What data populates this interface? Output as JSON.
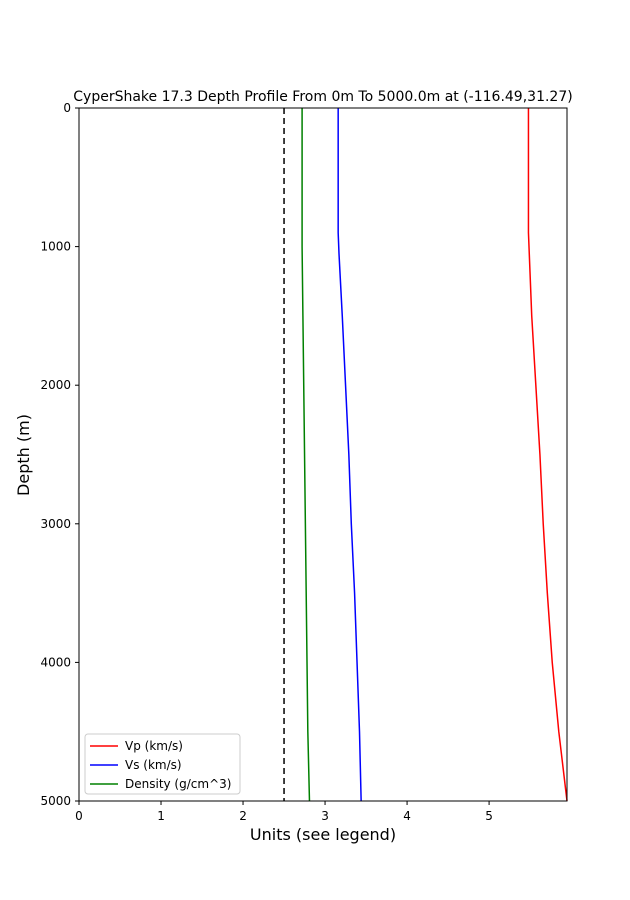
{
  "chart_data": {
    "type": "line",
    "title": "CyperShake 17.3 Depth Profile From 0m To 5000.0m at (-116.49,31.27)",
    "xlabel": "Units (see legend)",
    "ylabel": "Depth (m)",
    "xlim": [
      0,
      5.95
    ],
    "ylim": [
      5000,
      0
    ],
    "y_inverted": true,
    "grid": false,
    "legend_position": "lower-left",
    "x_ticks": [
      0,
      1,
      2,
      3,
      4,
      5
    ],
    "y_ticks": [
      0,
      1000,
      2000,
      3000,
      4000,
      5000
    ],
    "reference_line": {
      "x": 2.5,
      "style": "dashed",
      "color": "#000000"
    },
    "series": [
      {
        "name": "Vp (km/s)",
        "color": "#ff0000",
        "points": [
          [
            5.48,
            0
          ],
          [
            5.48,
            500
          ],
          [
            5.48,
            900
          ],
          [
            5.49,
            1050
          ],
          [
            5.52,
            1500
          ],
          [
            5.57,
            2000
          ],
          [
            5.62,
            2500
          ],
          [
            5.66,
            3000
          ],
          [
            5.71,
            3500
          ],
          [
            5.77,
            4000
          ],
          [
            5.85,
            4500
          ],
          [
            5.95,
            5000
          ]
        ]
      },
      {
        "name": "Vs (km/s)",
        "color": "#0000ff",
        "points": [
          [
            3.16,
            0
          ],
          [
            3.16,
            500
          ],
          [
            3.16,
            900
          ],
          [
            3.17,
            1050
          ],
          [
            3.21,
            1500
          ],
          [
            3.25,
            2000
          ],
          [
            3.29,
            2500
          ],
          [
            3.32,
            3000
          ],
          [
            3.36,
            3500
          ],
          [
            3.39,
            4000
          ],
          [
            3.42,
            4500
          ],
          [
            3.44,
            5000
          ]
        ]
      },
      {
        "name": "Density (g/cm^3)",
        "color": "#008000",
        "points": [
          [
            2.72,
            0
          ],
          [
            2.72,
            500
          ],
          [
            2.72,
            1000
          ],
          [
            2.73,
            1500
          ],
          [
            2.74,
            2000
          ],
          [
            2.75,
            2500
          ],
          [
            2.76,
            3000
          ],
          [
            2.77,
            3500
          ],
          [
            2.78,
            4000
          ],
          [
            2.79,
            4500
          ],
          [
            2.81,
            5000
          ]
        ]
      }
    ]
  }
}
